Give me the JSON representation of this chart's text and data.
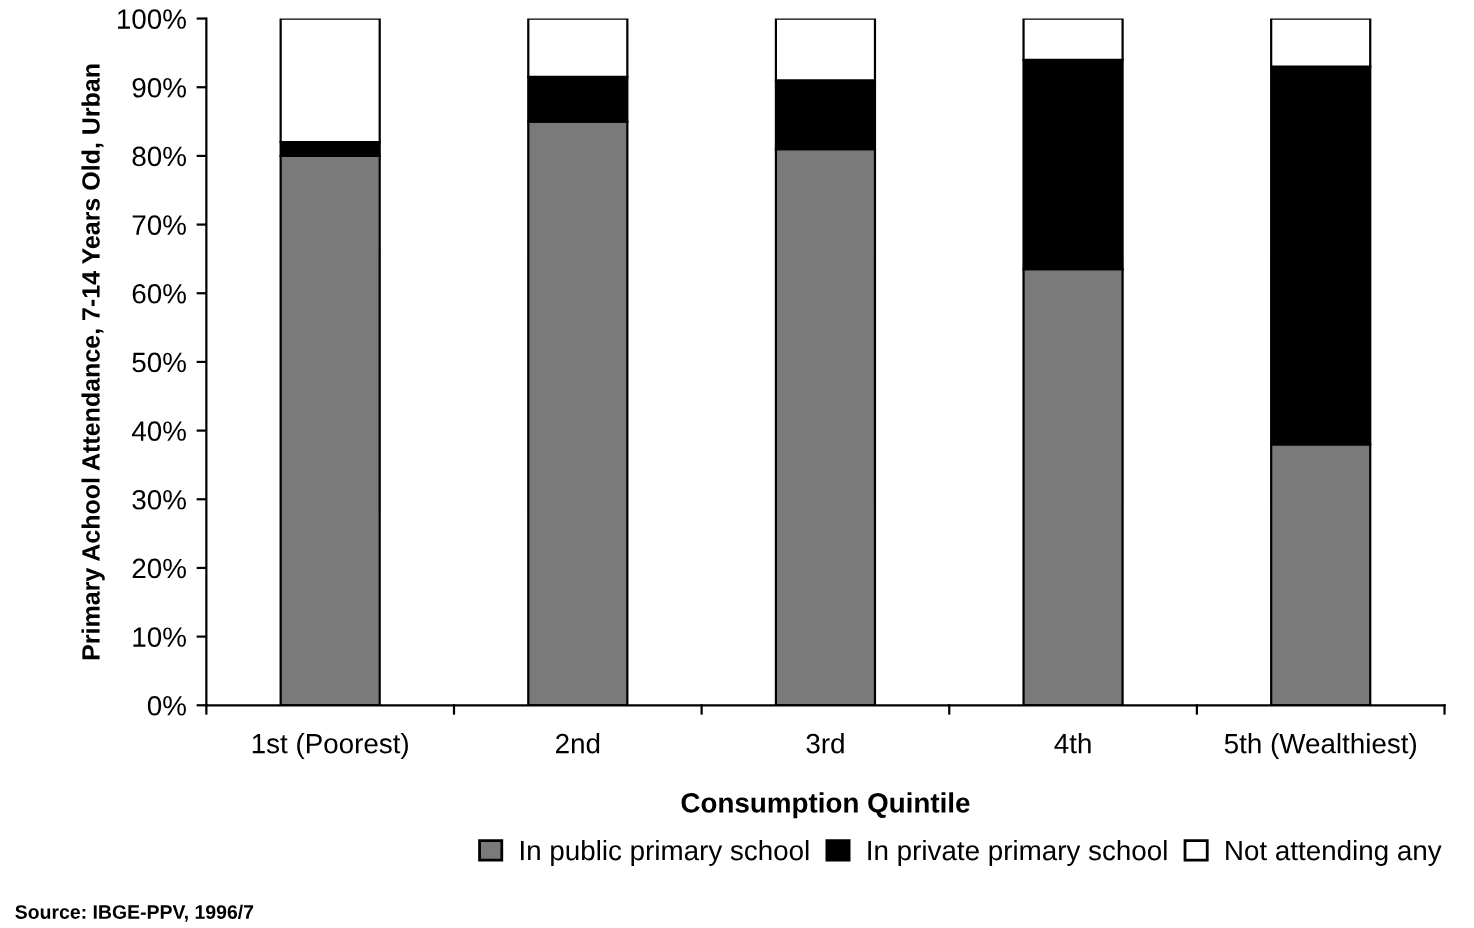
{
  "chart_data": {
    "type": "bar",
    "stacked": true,
    "xlabel": "Consumption Quintile",
    "ylabel": "Primary Achool Attendance, 7-14 Years Old, Urban",
    "categories": [
      "1st (Poorest)",
      "2nd",
      "3rd",
      "4th",
      "5th (Wealthiest)"
    ],
    "series": [
      {
        "name": "In public primary school",
        "color": "#7a7a7a",
        "values": [
          80,
          85,
          81,
          63.5,
          38
        ]
      },
      {
        "name": "In private primary school",
        "color": "#000000",
        "values": [
          2,
          6.5,
          10,
          30.5,
          55
        ]
      },
      {
        "name": "Not attending any",
        "color": "#ffffff",
        "values": [
          18,
          8.5,
          9,
          6,
          7
        ]
      }
    ],
    "ylim": [
      0,
      100
    ],
    "yticks": [
      {
        "value": 0,
        "label": "0%"
      },
      {
        "value": 10,
        "label": "10%"
      },
      {
        "value": 20,
        "label": "20%"
      },
      {
        "value": 30,
        "label": "30%"
      },
      {
        "value": 40,
        "label": "40%"
      },
      {
        "value": 50,
        "label": "50%"
      },
      {
        "value": 60,
        "label": "60%"
      },
      {
        "value": 70,
        "label": "70%"
      },
      {
        "value": 80,
        "label": "80%"
      },
      {
        "value": 90,
        "label": "90%"
      },
      {
        "value": 100,
        "label": "100%"
      }
    ],
    "grid": false,
    "legend": "bottom",
    "annotations": [
      "Source: IBGE-PPV, 1996/7"
    ]
  }
}
